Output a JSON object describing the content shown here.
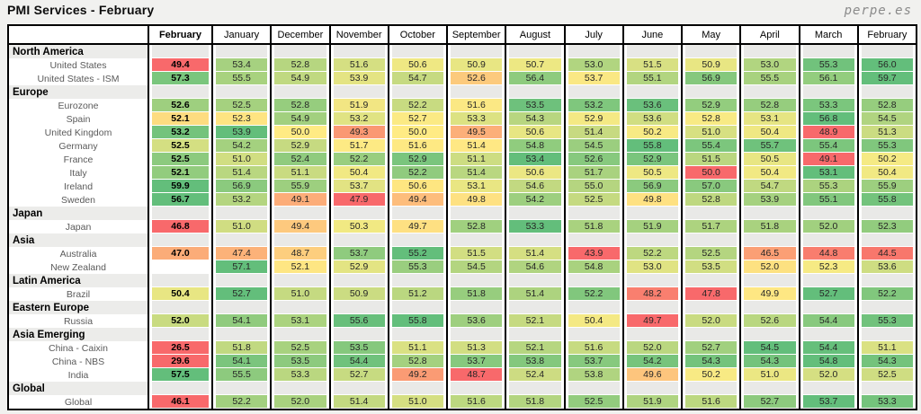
{
  "page": {
    "title": "PMI Services - February",
    "brand": "perpe.es"
  },
  "chart_data": {
    "type": "heatmap",
    "title": "PMI Services - February",
    "legend_position": "none",
    "color_scale": {
      "low": "#F8696B",
      "mid": "#FFEB84",
      "high": "#63BE7B"
    },
    "columns": [
      "February",
      "January",
      "December",
      "November",
      "October",
      "September",
      "August",
      "July",
      "June",
      "May",
      "April",
      "March",
      "February"
    ],
    "sections": [
      {
        "label": "North America",
        "rows": [
          {
            "label": "United States",
            "values": [
              49.4,
              53.4,
              52.8,
              51.6,
              50.6,
              50.9,
              50.7,
              53.0,
              51.5,
              50.9,
              53.0,
              55.3,
              56.0
            ],
            "colors": [
              "#F8696B",
              "#A6D180",
              "#B6D680",
              "#D5DF82",
              "#EFE883",
              "#E8E683",
              "#EDE883",
              "#B1D580",
              "#D8E083",
              "#E8E683",
              "#B1D580",
              "#71C27C",
              "#63BE7B"
            ]
          },
          {
            "label": "United States - ISM",
            "values": [
              57.3,
              55.5,
              54.9,
              53.9,
              54.7,
              52.6,
              56.4,
              53.7,
              55.1,
              56.9,
              55.5,
              56.1,
              59.7
            ],
            "colors": [
              "#7AC67D",
              "#A8D27F",
              "#C0D981",
              "#E4E483",
              "#C6DA81",
              "#FCCA7D",
              "#8ECB7E",
              "#FAE884",
              "#B2D580",
              "#85C87D",
              "#A8D27F",
              "#93CD7E",
              "#63BE7B"
            ]
          }
        ]
      },
      {
        "label": "Europe",
        "rows": [
          {
            "label": "Eurozone",
            "values": [
              52.6,
              52.5,
              52.8,
              51.9,
              52.2,
              51.6,
              53.5,
              53.2,
              53.6,
              52.9,
              52.8,
              53.3,
              52.8
            ],
            "colors": [
              "#9ECF7F",
              "#A5D17F",
              "#96CD7E",
              "#F2E683",
              "#C8DB81",
              "#FBE884",
              "#6EC17C",
              "#7FC77D",
              "#6AC07C",
              "#93CD7E",
              "#96CD7E",
              "#7BC67D",
              "#96CD7E"
            ]
          },
          {
            "label": "Spain",
            "values": [
              52.1,
              52.3,
              54.9,
              53.2,
              52.7,
              53.3,
              54.3,
              52.9,
              53.6,
              52.8,
              53.1,
              56.8,
              54.5
            ],
            "colors": [
              "#FDDC80",
              "#FEE482",
              "#A2D07F",
              "#E0E383",
              "#FBEA84",
              "#DCE282",
              "#B8D680",
              "#F4E984",
              "#D0DE82",
              "#F8EA84",
              "#E6E583",
              "#63BE7B",
              "#B0D480"
            ]
          },
          {
            "label": "United Kingdom",
            "values": [
              53.2,
              53.9,
              50.0,
              49.3,
              50.0,
              49.5,
              50.6,
              51.4,
              50.2,
              51.0,
              50.4,
              48.9,
              51.3
            ],
            "colors": [
              "#74C37C",
              "#63BE7B",
              "#FFEB84",
              "#FA9873",
              "#FFEB84",
              "#FCAF79",
              "#E7E683",
              "#C7DA81",
              "#F7EA84",
              "#D7E082",
              "#EFE883",
              "#F8696B",
              "#CBDC82"
            ]
          },
          {
            "label": "Germany",
            "values": [
              52.5,
              54.2,
              52.9,
              51.7,
              51.6,
              51.4,
              54.8,
              54.5,
              55.8,
              55.4,
              55.7,
              55.4,
              55.3
            ],
            "colors": [
              "#D4DF82",
              "#A4D17F",
              "#C6DA81",
              "#FDEA84",
              "#FEE983",
              "#FFE884",
              "#90CC7E",
              "#9BCE7F",
              "#63BE7B",
              "#7CC67D",
              "#6FC27C",
              "#7CC67D",
              "#80C77D"
            ]
          },
          {
            "label": "France",
            "values": [
              52.5,
              51.0,
              52.4,
              52.2,
              52.9,
              51.1,
              53.4,
              52.6,
              52.9,
              51.5,
              50.5,
              49.1,
              50.2
            ],
            "colors": [
              "#8CCA7E",
              "#D1DE82",
              "#90CB7E",
              "#99CE7F",
              "#7AC57D",
              "#CDDD82",
              "#63BE7B",
              "#87C97E",
              "#7AC57D",
              "#BAD780",
              "#E8E683",
              "#F8696B",
              "#F5EA84"
            ]
          },
          {
            "label": "Italy",
            "values": [
              52.1,
              51.4,
              51.1,
              50.4,
              52.2,
              51.4,
              50.6,
              51.7,
              50.5,
              50.0,
              50.4,
              53.1,
              50.4
            ],
            "colors": [
              "#92CC7E",
              "#B9D780",
              "#C9DB81",
              "#F1E983",
              "#90CB7E",
              "#B9D780",
              "#EBE783",
              "#A9D27F",
              "#EEE883",
              "#F8696B",
              "#F1E983",
              "#63BE7B",
              "#F1E983"
            ]
          },
          {
            "label": "Ireland",
            "values": [
              59.9,
              56.9,
              55.9,
              53.7,
              50.6,
              53.1,
              54.6,
              55.0,
              56.9,
              57.0,
              54.7,
              55.3,
              55.9
            ],
            "colors": [
              "#63BE7B",
              "#8BCA7E",
              "#9DCF7F",
              "#E2E383",
              "#FEE681",
              "#E9E683",
              "#C2D981",
              "#B5D580",
              "#8BCA7E",
              "#89C97E",
              "#C0D981",
              "#ACD37F",
              "#9DCF7F"
            ]
          },
          {
            "label": "Sweden",
            "values": [
              56.7,
              53.2,
              49.1,
              47.9,
              49.4,
              49.8,
              54.2,
              52.5,
              49.8,
              52.8,
              53.9,
              55.1,
              55.8
            ],
            "colors": [
              "#63BE7B",
              "#B4D580",
              "#FCAD79",
              "#F8696B",
              "#FDBD7C",
              "#FEE182",
              "#9DCF7F",
              "#C5DA81",
              "#FEE182",
              "#BED880",
              "#A5D17F",
              "#81C77D",
              "#73C37C"
            ]
          }
        ]
      },
      {
        "label": "Japan",
        "rows": [
          {
            "label": "Japan",
            "values": [
              46.8,
              51.0,
              49.4,
              50.3,
              49.7,
              52.8,
              53.3,
              51.8,
              51.9,
              51.7,
              51.8,
              52.0,
              52.3
            ],
            "colors": [
              "#F8696B",
              "#D0DD82",
              "#FDC97E",
              "#F1E983",
              "#FEE082",
              "#A0D07F",
              "#63BE7B",
              "#A9D27F",
              "#A5D17F",
              "#ADD37F",
              "#A9D27F",
              "#A1D07F",
              "#92CC7E"
            ]
          }
        ]
      },
      {
        "label": "Asia",
        "rows": [
          {
            "label": "Australia",
            "values": [
              47.0,
              47.4,
              48.7,
              53.7,
              55.2,
              51.5,
              51.4,
              43.9,
              52.2,
              52.5,
              46.5,
              44.8,
              44.5
            ],
            "colors": [
              "#FBAC78",
              "#FCB279",
              "#FDCE7E",
              "#8FCB7E",
              "#63BE7B",
              "#D2DE82",
              "#D5DF82",
              "#F8696B",
              "#BDD880",
              "#B4D580",
              "#FB9F75",
              "#F97D6E",
              "#F8776C"
            ]
          },
          {
            "label": "New Zealand",
            "values": [
              null,
              57.1,
              52.1,
              52.9,
              55.3,
              54.5,
              54.6,
              54.8,
              53.0,
              53.5,
              52.0,
              52.3,
              53.6
            ],
            "colors": [
              null,
              "#63BE7B",
              "#FEE683",
              "#E3E483",
              "#9ACE7F",
              "#B3D580",
              "#B0D480",
              "#A9D27F",
              "#E0E383",
              "#D1DE82",
              "#FDE181",
              "#F6EA84",
              "#CEDD82"
            ]
          }
        ]
      },
      {
        "label": "Latin America",
        "rows": [
          {
            "label": "Brazil",
            "values": [
              50.4,
              52.7,
              51.0,
              50.9,
              51.2,
              51.8,
              51.4,
              52.2,
              48.2,
              47.8,
              49.9,
              52.7,
              52.2
            ],
            "colors": [
              "#E8E683",
              "#63BE7B",
              "#C5DA81",
              "#CBDC82",
              "#BAD780",
              "#97CD7E",
              "#ADD37F",
              "#81C77D",
              "#F97F6F",
              "#F8696B",
              "#FEE783",
              "#63BE7B",
              "#81C77D"
            ]
          }
        ]
      },
      {
        "label": "Eastern Europe",
        "rows": [
          {
            "label": "Russia",
            "values": [
              52.0,
              54.1,
              53.1,
              55.6,
              55.8,
              53.6,
              52.1,
              50.4,
              49.7,
              52.0,
              52.6,
              54.4,
              55.3
            ],
            "colors": [
              "#C9DB81",
              "#90CB7E",
              "#ABD37F",
              "#68BF7B",
              "#63BE7B",
              "#9ECF7F",
              "#C6DA81",
              "#F4E984",
              "#F8696B",
              "#C9DB81",
              "#B9D780",
              "#88C97E",
              "#71C27C"
            ]
          }
        ]
      },
      {
        "label": "Asia Emerging",
        "rows": [
          {
            "label": "China - Caixin",
            "values": [
              26.5,
              51.8,
              52.5,
              53.5,
              51.1,
              51.3,
              52.1,
              51.6,
              52.0,
              52.7,
              54.5,
              54.4,
              51.1
            ],
            "colors": [
              "#F8696B",
              "#C1D981",
              "#A8D27F",
              "#85C87D",
              "#DAE183",
              "#D2DE82",
              "#B6D680",
              "#C7DB81",
              "#BAD780",
              "#A1D07F",
              "#63BE7B",
              "#66BF7B",
              "#DAE183"
            ]
          },
          {
            "label": "China - NBS",
            "values": [
              29.6,
              54.1,
              53.5,
              54.4,
              52.8,
              53.7,
              53.8,
              53.7,
              54.2,
              54.3,
              54.3,
              54.8,
              54.3
            ],
            "colors": [
              "#F8696B",
              "#7BC57D",
              "#8DCA7E",
              "#70C27C",
              "#A4D17F",
              "#87C97E",
              "#84C87D",
              "#87C97E",
              "#77C47C",
              "#74C37C",
              "#74C37C",
              "#63BE7B",
              "#74C37C"
            ]
          },
          {
            "label": "India",
            "values": [
              57.5,
              55.5,
              53.3,
              52.7,
              49.2,
              48.7,
              52.4,
              53.8,
              49.6,
              50.2,
              51.0,
              52.0,
              52.5
            ],
            "colors": [
              "#63BE7B",
              "#8DCA7E",
              "#BAD780",
              "#C7DB81",
              "#FA9B74",
              "#F8696B",
              "#CDDC82",
              "#B0D480",
              "#FDC57D",
              "#F8EA84",
              "#EBE783",
              "#D5DF82",
              "#CFDD82"
            ]
          }
        ]
      },
      {
        "label": "Global",
        "rows": [
          {
            "label": "Global",
            "values": [
              46.1,
              52.2,
              52.0,
              51.4,
              51.0,
              51.6,
              51.8,
              52.5,
              51.9,
              51.6,
              52.7,
              53.7,
              53.3
            ],
            "colors": [
              "#F8696B",
              "#A2D07F",
              "#A9D27F",
              "#C3D981",
              "#D5DF82",
              "#BCD880",
              "#B3D580",
              "#93CC7E",
              "#AFD480",
              "#BCD880",
              "#8DCA7E",
              "#63BE7B",
              "#74C37C"
            ]
          }
        ]
      }
    ]
  }
}
